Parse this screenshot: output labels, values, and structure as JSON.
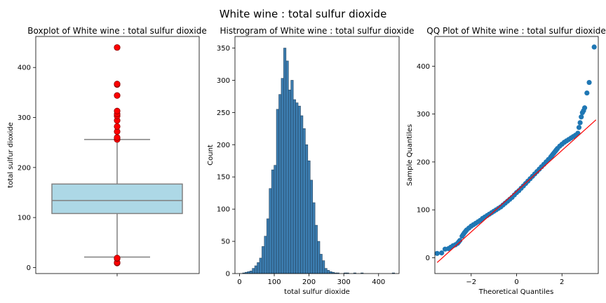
{
  "figure": {
    "suptitle": "White wine : total sulfur dioxide"
  },
  "chart_data": [
    {
      "type": "box",
      "title": "Boxplot of White wine : total sulfur dioxide",
      "xlabel": "",
      "ylabel": "total sulfur dioxide",
      "ylim": [
        -12,
        462
      ],
      "yticks": [
        0,
        100,
        200,
        300,
        400
      ],
      "box": {
        "q1": 108,
        "median": 134,
        "q3": 167,
        "whisker_low": 21,
        "whisker_high": 256
      },
      "outliers": [
        9,
        10,
        18,
        19,
        256,
        260,
        272,
        282,
        294,
        303,
        307,
        313,
        344,
        366,
        367,
        440
      ],
      "colors": {
        "box": "#add8e6",
        "lines": "#808080",
        "outlier": "#ff0000"
      }
    },
    {
      "type": "histogram",
      "title": "Histrogram of White wine : total sulfur dioxide",
      "xlabel": "total sulfur dioxide",
      "ylabel": "Count",
      "xlim": [
        -13,
        459
      ],
      "ylim": [
        0,
        368
      ],
      "xticks": [
        0,
        100,
        200,
        300,
        400
      ],
      "yticks": [
        0,
        50,
        100,
        150,
        200,
        250,
        300,
        350
      ],
      "bin_start": 9,
      "bin_width": 6.94,
      "counts": [
        1,
        2,
        3,
        4,
        8,
        12,
        17,
        24,
        42,
        58,
        85,
        132,
        161,
        168,
        255,
        278,
        303,
        350,
        330,
        285,
        300,
        270,
        265,
        260,
        245,
        225,
        200,
        175,
        145,
        110,
        75,
        50,
        30,
        20,
        8,
        5,
        3,
        2,
        1,
        1,
        0,
        0,
        1,
        1,
        0,
        0,
        1,
        0,
        0,
        1,
        0,
        0,
        0,
        0,
        0,
        0,
        0,
        0,
        0,
        0,
        0,
        0,
        1
      ],
      "colors": {
        "bar": "#3c7db0",
        "edge": "#23435f"
      }
    },
    {
      "type": "scatter",
      "title": "QQ Plot of White wine : total sulfur dioxide",
      "xlabel": "Theoretical Quantiles",
      "ylabel": "Sample Quantiles",
      "xlim": [
        -3.6,
        3.6
      ],
      "ylim": [
        -33,
        462
      ],
      "xticks": [
        -2,
        0,
        2
      ],
      "yticks": [
        0,
        100,
        200,
        300,
        400
      ],
      "fit_line": {
        "x": [
          -3.5,
          3.5
        ],
        "y": [
          -10,
          288
        ]
      },
      "points": [
        [
          -3.5,
          9
        ],
        [
          -3.3,
          10
        ],
        [
          -3.15,
          18
        ],
        [
          -3.0,
          19
        ],
        [
          -2.9,
          22
        ],
        [
          -2.8,
          25
        ],
        [
          -2.7,
          27
        ],
        [
          -2.6,
          30
        ],
        [
          -2.5,
          36
        ],
        [
          -2.4,
          45
        ],
        [
          -2.3,
          52
        ],
        [
          -2.2,
          58
        ],
        [
          -2.1,
          62
        ],
        [
          -2.0,
          66
        ],
        [
          -1.9,
          69
        ],
        [
          -1.8,
          72
        ],
        [
          -1.7,
          75
        ],
        [
          -1.6,
          78
        ],
        [
          -1.5,
          82
        ],
        [
          -1.4,
          85
        ],
        [
          -1.3,
          88
        ],
        [
          -1.2,
          91
        ],
        [
          -1.1,
          94
        ],
        [
          -1.0,
          97
        ],
        [
          -0.9,
          100
        ],
        [
          -0.8,
          103
        ],
        [
          -0.7,
          106
        ],
        [
          -0.6,
          110
        ],
        [
          -0.5,
          114
        ],
        [
          -0.4,
          118
        ],
        [
          -0.3,
          122
        ],
        [
          -0.2,
          126
        ],
        [
          -0.1,
          131
        ],
        [
          0.0,
          136
        ],
        [
          0.1,
          140
        ],
        [
          0.2,
          145
        ],
        [
          0.3,
          150
        ],
        [
          0.4,
          155
        ],
        [
          0.5,
          160
        ],
        [
          0.6,
          165
        ],
        [
          0.7,
          170
        ],
        [
          0.8,
          175
        ],
        [
          0.9,
          180
        ],
        [
          1.0,
          185
        ],
        [
          1.1,
          190
        ],
        [
          1.2,
          195
        ],
        [
          1.3,
          200
        ],
        [
          1.4,
          205
        ],
        [
          1.5,
          210
        ],
        [
          1.6,
          216
        ],
        [
          1.7,
          222
        ],
        [
          1.8,
          228
        ],
        [
          1.9,
          233
        ],
        [
          2.0,
          237
        ],
        [
          2.1,
          241
        ],
        [
          2.2,
          244
        ],
        [
          2.3,
          247
        ],
        [
          2.4,
          250
        ],
        [
          2.5,
          253
        ],
        [
          2.6,
          256
        ],
        [
          2.7,
          260
        ],
        [
          2.75,
          272
        ],
        [
          2.8,
          282
        ],
        [
          2.85,
          294
        ],
        [
          2.9,
          303
        ],
        [
          2.95,
          307
        ],
        [
          3.0,
          313
        ],
        [
          3.1,
          344
        ],
        [
          3.2,
          366
        ],
        [
          3.42,
          440
        ]
      ],
      "colors": {
        "point": "#1f77b4",
        "line": "#ff0000"
      }
    }
  ]
}
